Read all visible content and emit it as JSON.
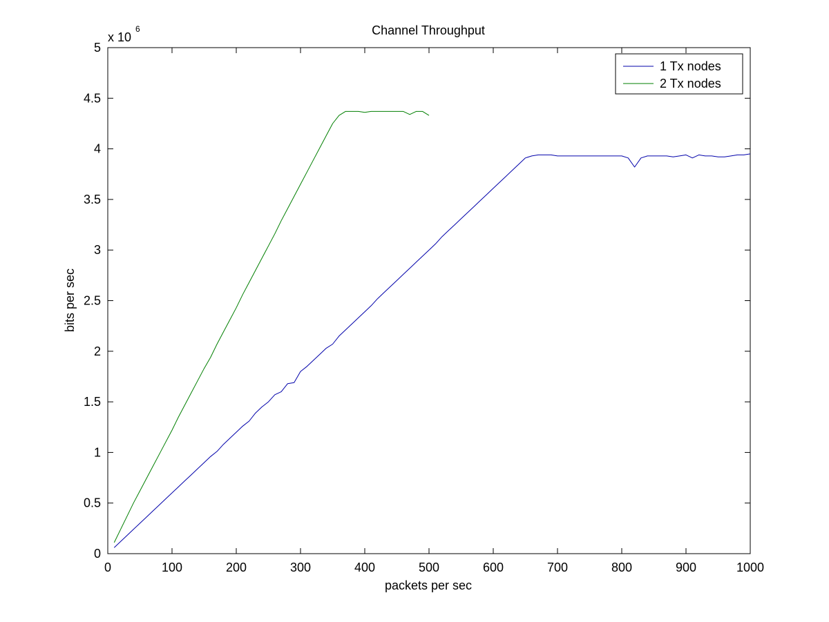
{
  "chart_data": {
    "type": "line",
    "title": "Channel Throughput",
    "xlabel": "packets per sec",
    "ylabel": "bits per sec",
    "y_multiplier": "x 10",
    "y_exponent": "6",
    "xlim": [
      0,
      1000
    ],
    "ylim": [
      0,
      5
    ],
    "x_ticks": [
      0,
      100,
      200,
      300,
      400,
      500,
      600,
      700,
      800,
      900,
      1000
    ],
    "x_tick_labels": [
      "0",
      "100",
      "200",
      "300",
      "400",
      "500",
      "600",
      "700",
      "800",
      "900",
      "1000"
    ],
    "y_ticks": [
      0,
      0.5,
      1,
      1.5,
      2,
      2.5,
      3,
      3.5,
      4,
      4.5,
      5
    ],
    "y_tick_labels": [
      "0",
      "0.5",
      "1",
      "1.5",
      "2",
      "2.5",
      "3",
      "3.5",
      "4",
      "4.5",
      "5"
    ],
    "grid": false,
    "legend_position": "top-right",
    "series": [
      {
        "name": "1 Tx nodes",
        "color": "#0000aa",
        "x": [
          10,
          20,
          30,
          40,
          50,
          60,
          70,
          80,
          90,
          100,
          110,
          120,
          130,
          140,
          150,
          160,
          170,
          180,
          190,
          200,
          210,
          220,
          230,
          240,
          250,
          260,
          270,
          280,
          290,
          300,
          310,
          320,
          330,
          340,
          350,
          360,
          370,
          380,
          390,
          400,
          410,
          420,
          430,
          440,
          450,
          460,
          470,
          480,
          490,
          500,
          510,
          520,
          530,
          540,
          550,
          560,
          570,
          580,
          590,
          600,
          610,
          620,
          630,
          640,
          650,
          660,
          670,
          680,
          690,
          700,
          710,
          720,
          730,
          740,
          750,
          760,
          770,
          780,
          790,
          800,
          810,
          820,
          830,
          840,
          850,
          860,
          870,
          880,
          890,
          900,
          910,
          920,
          930,
          940,
          950,
          960,
          970,
          980,
          990,
          1000
        ],
        "y": [
          0.06,
          0.12,
          0.18,
          0.24,
          0.3,
          0.36,
          0.42,
          0.48,
          0.54,
          0.6,
          0.66,
          0.72,
          0.78,
          0.84,
          0.9,
          0.96,
          1.01,
          1.08,
          1.14,
          1.2,
          1.26,
          1.31,
          1.39,
          1.45,
          1.5,
          1.57,
          1.6,
          1.68,
          1.69,
          1.8,
          1.85,
          1.91,
          1.97,
          2.03,
          2.07,
          2.15,
          2.21,
          2.27,
          2.33,
          2.39,
          2.45,
          2.52,
          2.58,
          2.64,
          2.7,
          2.76,
          2.82,
          2.88,
          2.94,
          3.0,
          3.06,
          3.13,
          3.19,
          3.25,
          3.31,
          3.37,
          3.43,
          3.49,
          3.55,
          3.61,
          3.67,
          3.73,
          3.79,
          3.85,
          3.91,
          3.93,
          3.94,
          3.94,
          3.94,
          3.93,
          3.93,
          3.93,
          3.93,
          3.93,
          3.93,
          3.93,
          3.93,
          3.93,
          3.93,
          3.93,
          3.91,
          3.82,
          3.91,
          3.93,
          3.93,
          3.93,
          3.93,
          3.92,
          3.93,
          3.94,
          3.91,
          3.94,
          3.93,
          3.93,
          3.92,
          3.92,
          3.93,
          3.94,
          3.94,
          3.95
        ]
      },
      {
        "name": "2 Tx nodes",
        "color": "#007f00",
        "x": [
          10,
          20,
          30,
          40,
          50,
          60,
          70,
          80,
          90,
          100,
          110,
          120,
          130,
          140,
          150,
          160,
          170,
          180,
          190,
          200,
          210,
          220,
          230,
          240,
          250,
          260,
          270,
          280,
          290,
          300,
          310,
          320,
          330,
          340,
          350,
          360,
          370,
          380,
          390,
          400,
          410,
          420,
          430,
          440,
          450,
          460,
          470,
          480,
          490,
          500
        ],
        "y": [
          0.11,
          0.24,
          0.37,
          0.5,
          0.62,
          0.74,
          0.86,
          0.98,
          1.1,
          1.22,
          1.35,
          1.47,
          1.59,
          1.71,
          1.83,
          1.94,
          2.07,
          2.19,
          2.31,
          2.43,
          2.56,
          2.68,
          2.8,
          2.92,
          3.04,
          3.16,
          3.29,
          3.41,
          3.53,
          3.65,
          3.77,
          3.89,
          4.01,
          4.13,
          4.25,
          4.33,
          4.37,
          4.37,
          4.37,
          4.36,
          4.37,
          4.37,
          4.37,
          4.37,
          4.37,
          4.37,
          4.34,
          4.37,
          4.37,
          4.33
        ]
      }
    ]
  }
}
